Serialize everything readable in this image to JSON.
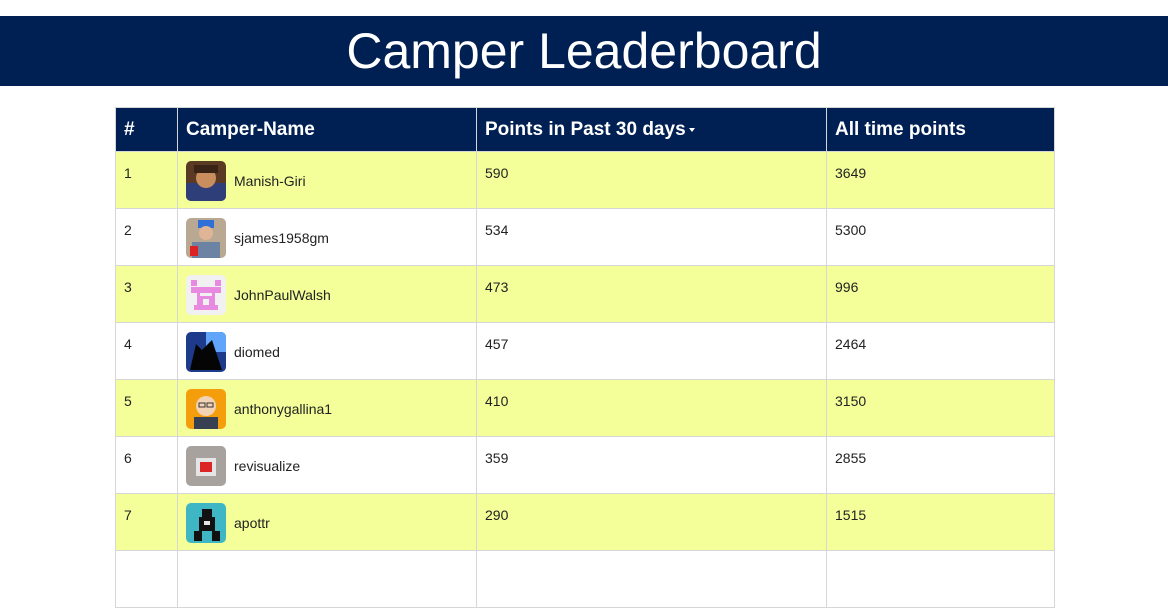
{
  "header": {
    "title": "Camper Leaderboard"
  },
  "table": {
    "columns": {
      "rank": "#",
      "name": "Camper-Name",
      "recent": "Points in Past 30 days",
      "alltime": "All time points"
    },
    "sort_icon": "caret-down-icon",
    "row_colors": {
      "odd": "#f4ff9a",
      "even": "#ffffff"
    },
    "header_color": "#001f52",
    "rows": [
      {
        "rank": "1",
        "name": "Manish-Giri",
        "recent": "590",
        "alltime": "3649",
        "avatar_color": "#7a5a3c"
      },
      {
        "rank": "2",
        "name": "sjames1958gm",
        "recent": "534",
        "alltime": "5300",
        "avatar_color": "#9b8a7a"
      },
      {
        "rank": "3",
        "name": "JohnPaulWalsh",
        "recent": "473",
        "alltime": "996",
        "avatar_color": "#f3e6f3"
      },
      {
        "rank": "4",
        "name": "diomed",
        "recent": "457",
        "alltime": "2464",
        "avatar_color": "#111827"
      },
      {
        "rank": "5",
        "name": "anthonygallina1",
        "recent": "410",
        "alltime": "3150",
        "avatar_color": "#f59e0b"
      },
      {
        "rank": "6",
        "name": "revisualize",
        "recent": "359",
        "alltime": "2855",
        "avatar_color": "#a3a3a3"
      },
      {
        "rank": "7",
        "name": "apottr",
        "recent": "290",
        "alltime": "1515",
        "avatar_color": "#3fb6c4"
      }
    ]
  }
}
